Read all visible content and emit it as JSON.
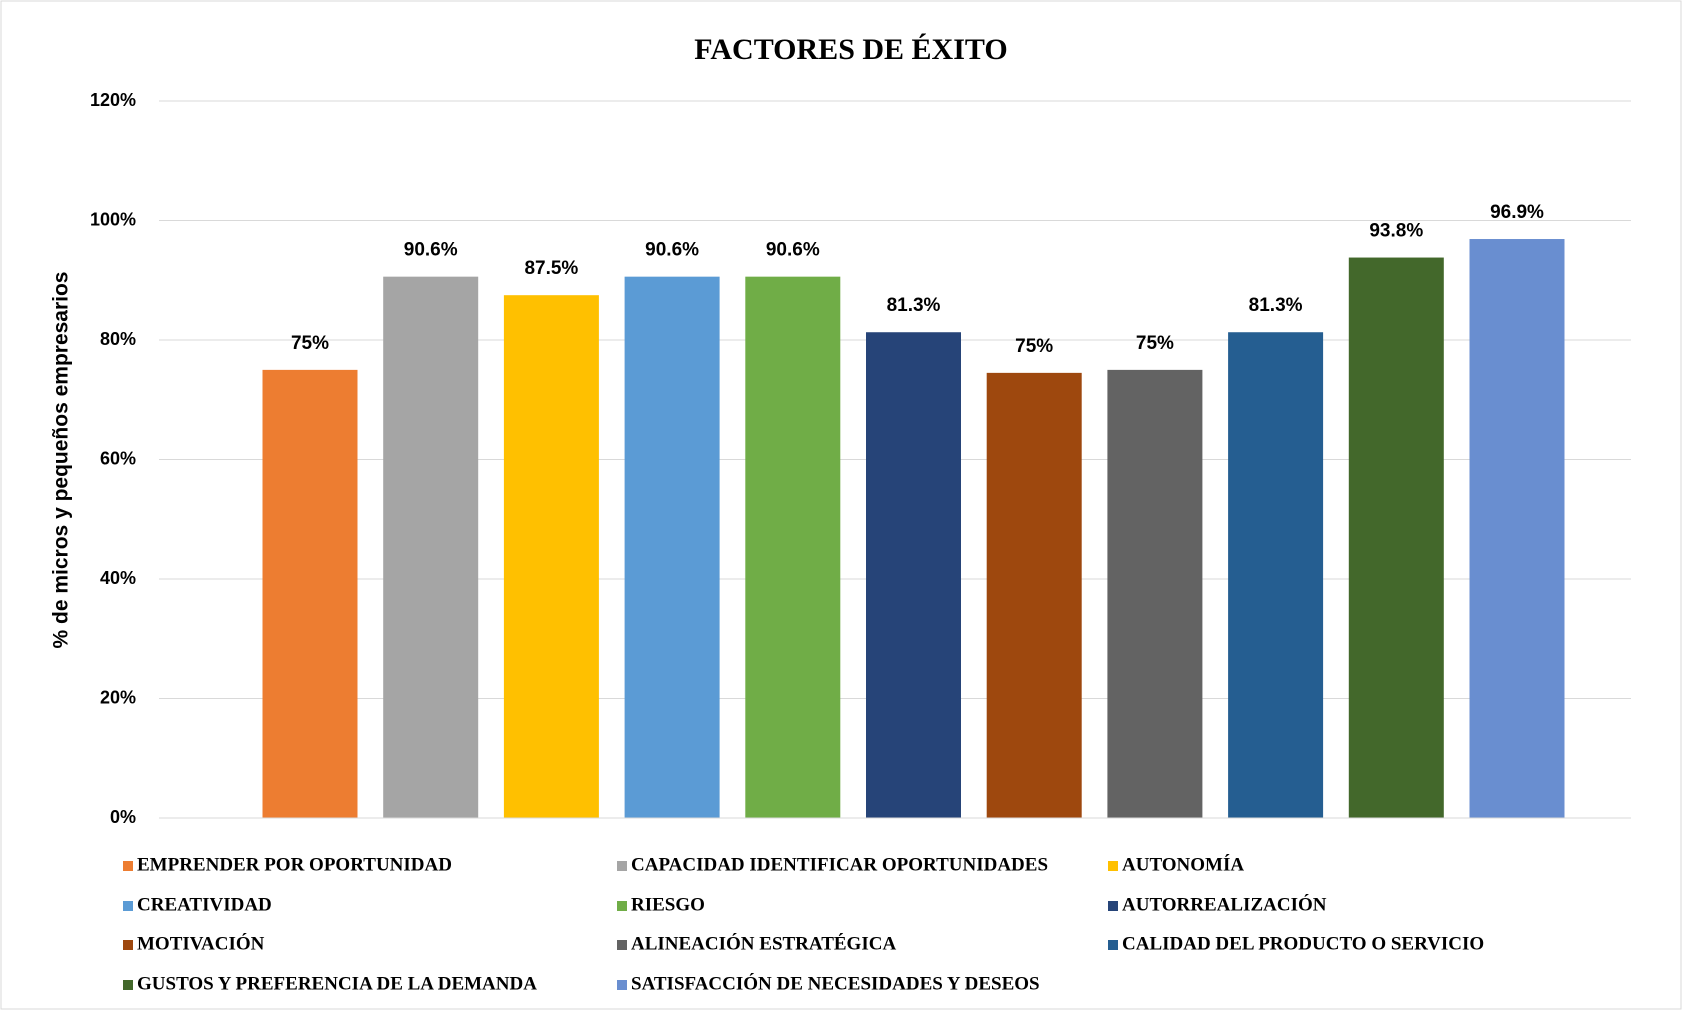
{
  "chart_data": {
    "type": "bar",
    "title": "FACTORES DE ÉXITO",
    "y_label": "% de micros y pequeños empresarios",
    "categories": [
      null
    ],
    "ylim": [
      0,
      120
    ],
    "yticks": [
      {
        "value": 0,
        "label": "0%"
      },
      {
        "value": 20,
        "label": "20%"
      },
      {
        "value": 40,
        "label": "40%"
      },
      {
        "value": 60,
        "label": "60%"
      },
      {
        "value": 80,
        "label": "80%"
      },
      {
        "value": 100,
        "label": "100%"
      },
      {
        "value": 120,
        "label": "120%"
      }
    ],
    "grid": true,
    "legend": "bottom",
    "series": [
      {
        "name": "EMPRENDER POR OPORTUNIDAD",
        "color": "#ed7d31",
        "values": [
          75
        ],
        "value_labels": [
          "75%"
        ]
      },
      {
        "name": "CAPACIDAD IDENTIFICAR OPORTUNIDADES",
        "color": "#a5a5a5",
        "values": [
          90.6
        ],
        "value_labels": [
          "90.6%"
        ]
      },
      {
        "name": "AUTONOMÍA",
        "color": "#ffc000",
        "values": [
          87.5
        ],
        "value_labels": [
          "87.5%"
        ]
      },
      {
        "name": "CREATIVIDAD",
        "color": "#5b9bd5",
        "values": [
          90.6
        ],
        "value_labels": [
          "90.6%"
        ]
      },
      {
        "name": "RIESGO",
        "color": "#70ad47",
        "values": [
          90.6
        ],
        "value_labels": [
          "90.6%"
        ]
      },
      {
        "name": "AUTORREALIZACIÓN",
        "color": "#264478",
        "values": [
          81.3
        ],
        "value_labels": [
          "81.3%"
        ]
      },
      {
        "name": "MOTIVACIÓN",
        "color": "#9e480e",
        "values": [
          74.5
        ],
        "value_labels": [
          "75%"
        ]
      },
      {
        "name": "ALINEACIÓN ESTRATÉGICA",
        "color": "#636363",
        "values": [
          75
        ],
        "value_labels": [
          "75%"
        ]
      },
      {
        "name": "CALIDAD DEL PRODUCTO O SERVICIO",
        "color": "#255e91",
        "values": [
          81.3
        ],
        "value_labels": [
          "81.3%"
        ]
      },
      {
        "name": "GUSTOS Y PREFERENCIA DE LA DEMANDA",
        "color": "#43682b",
        "values": [
          93.8
        ],
        "value_labels": [
          "93.8%"
        ]
      },
      {
        "name": "SATISFACCIÓN DE NECESIDADES Y DESEOS",
        "color": "#698ed0",
        "values": [
          96.9
        ],
        "value_labels": [
          "96.9%"
        ]
      }
    ]
  }
}
